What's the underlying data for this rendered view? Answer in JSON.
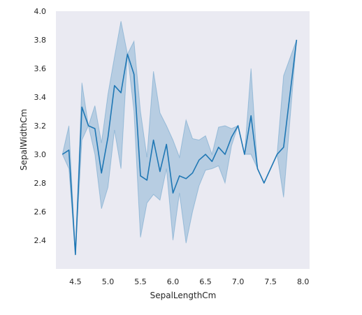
{
  "chart_data": {
    "type": "line",
    "title": "",
    "xlabel": "SepalLengthCm",
    "ylabel": "SepalWidthCm",
    "xlim": [
      4.2,
      8.1
    ],
    "ylim": [
      2.2,
      4.0
    ],
    "grid": false,
    "colors": {
      "line": "#1f77b4",
      "band": "#1f77b4",
      "plot_bg": "#eaeaf2"
    },
    "x_ticks": [
      {
        "value": 4.5,
        "label": "4.5"
      },
      {
        "value": 5.0,
        "label": "5.0"
      },
      {
        "value": 5.5,
        "label": "5.5"
      },
      {
        "value": 6.0,
        "label": "6.0"
      },
      {
        "value": 6.5,
        "label": "6.5"
      },
      {
        "value": 7.0,
        "label": "7.0"
      },
      {
        "value": 7.5,
        "label": "7.5"
      },
      {
        "value": 8.0,
        "label": "8.0"
      }
    ],
    "y_ticks": [
      {
        "value": 2.4,
        "label": "2.4"
      },
      {
        "value": 2.6,
        "label": "2.6"
      },
      {
        "value": 2.8,
        "label": "2.8"
      },
      {
        "value": 3.0,
        "label": "3.0"
      },
      {
        "value": 3.2,
        "label": "3.2"
      },
      {
        "value": 3.4,
        "label": "3.4"
      },
      {
        "value": 3.6,
        "label": "3.6"
      },
      {
        "value": 3.8,
        "label": "3.8"
      },
      {
        "value": 4.0,
        "label": "4.0"
      }
    ],
    "series": [
      {
        "points": [
          {
            "x": 4.3,
            "y": 3.0,
            "lo": 3.0,
            "hi": 3.0
          },
          {
            "x": 4.4,
            "y": 3.03,
            "lo": 2.9,
            "hi": 3.2
          },
          {
            "x": 4.5,
            "y": 2.3,
            "lo": 2.3,
            "hi": 2.3
          },
          {
            "x": 4.6,
            "y": 3.33,
            "lo": 3.1,
            "hi": 3.5
          },
          {
            "x": 4.7,
            "y": 3.2,
            "lo": 3.2,
            "hi": 3.2
          },
          {
            "x": 4.8,
            "y": 3.18,
            "lo": 3.0,
            "hi": 3.34
          },
          {
            "x": 4.9,
            "y": 2.87,
            "lo": 2.62,
            "hi": 3.08
          },
          {
            "x": 5.0,
            "y": 3.12,
            "lo": 2.77,
            "hi": 3.42
          },
          {
            "x": 5.1,
            "y": 3.48,
            "lo": 3.17,
            "hi": 3.68
          },
          {
            "x": 5.2,
            "y": 3.43,
            "lo": 2.9,
            "hi": 3.93
          },
          {
            "x": 5.3,
            "y": 3.7,
            "lo": 3.7,
            "hi": 3.7
          },
          {
            "x": 5.4,
            "y": 3.56,
            "lo": 3.3,
            "hi": 3.79
          },
          {
            "x": 5.5,
            "y": 2.85,
            "lo": 2.42,
            "hi": 3.3
          },
          {
            "x": 5.6,
            "y": 2.82,
            "lo": 2.66,
            "hi": 2.98
          },
          {
            "x": 5.7,
            "y": 3.1,
            "lo": 2.72,
            "hi": 3.58
          },
          {
            "x": 5.8,
            "y": 2.88,
            "lo": 2.68,
            "hi": 3.29
          },
          {
            "x": 5.9,
            "y": 3.07,
            "lo": 2.9,
            "hi": 3.2
          },
          {
            "x": 6.0,
            "y": 2.73,
            "lo": 2.4,
            "hi": 3.1
          },
          {
            "x": 6.1,
            "y": 2.85,
            "lo": 2.73,
            "hi": 2.98
          },
          {
            "x": 6.2,
            "y": 2.83,
            "lo": 2.38,
            "hi": 3.24
          },
          {
            "x": 6.3,
            "y": 2.87,
            "lo": 2.6,
            "hi": 3.11
          },
          {
            "x": 6.4,
            "y": 2.96,
            "lo": 2.78,
            "hi": 3.1
          },
          {
            "x": 6.5,
            "y": 3.0,
            "lo": 2.89,
            "hi": 3.13
          },
          {
            "x": 6.6,
            "y": 2.95,
            "lo": 2.9,
            "hi": 3.0
          },
          {
            "x": 6.7,
            "y": 3.05,
            "lo": 2.92,
            "hi": 3.19
          },
          {
            "x": 6.8,
            "y": 3.0,
            "lo": 2.8,
            "hi": 3.2
          },
          {
            "x": 6.9,
            "y": 3.12,
            "lo": 3.06,
            "hi": 3.18
          },
          {
            "x": 7.0,
            "y": 3.2,
            "lo": 3.2,
            "hi": 3.2
          },
          {
            "x": 7.1,
            "y": 3.0,
            "lo": 3.0,
            "hi": 3.0
          },
          {
            "x": 7.2,
            "y": 3.27,
            "lo": 3.0,
            "hi": 3.6
          },
          {
            "x": 7.3,
            "y": 2.9,
            "lo": 2.9,
            "hi": 2.9
          },
          {
            "x": 7.4,
            "y": 2.8,
            "lo": 2.8,
            "hi": 2.8
          },
          {
            "x": 7.6,
            "y": 3.0,
            "lo": 3.0,
            "hi": 3.0
          },
          {
            "x": 7.7,
            "y": 3.05,
            "lo": 2.7,
            "hi": 3.55
          },
          {
            "x": 7.9,
            "y": 3.8,
            "lo": 3.8,
            "hi": 3.8
          }
        ]
      }
    ]
  }
}
